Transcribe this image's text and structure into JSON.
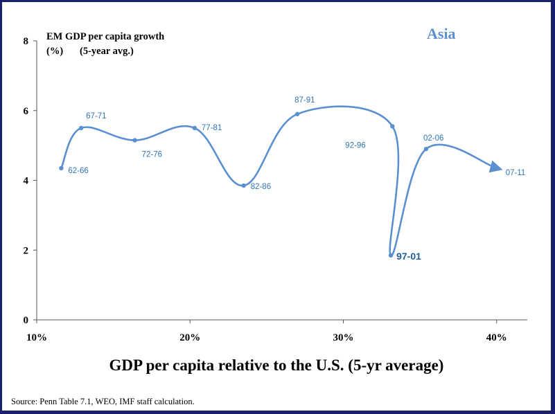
{
  "chart_data": {
    "type": "line",
    "title": "Asia",
    "ylabel_line1": "EM GDP  per capita  growth",
    "ylabel_units": "(%)",
    "ylabel_avg": "(5-year avg.)",
    "xlabel": "GDP per capita relative to the U.S. (5-yr average)",
    "xlim": [
      10,
      42
    ],
    "ylim": [
      0,
      8
    ],
    "x_ticks": [
      10,
      20,
      30,
      40
    ],
    "x_tick_labels": [
      "10%",
      "20%",
      "30%",
      "40%"
    ],
    "y_ticks": [
      0,
      2,
      4,
      6,
      8
    ],
    "y_tick_labels": [
      "0",
      "2",
      "4",
      "6",
      "8"
    ],
    "grid": false,
    "series": [
      {
        "name": "Asia",
        "color": "#5b8fd0",
        "points": [
          {
            "label": "62-66",
            "x": 11.6,
            "y": 4.35
          },
          {
            "label": "67-71",
            "x": 12.9,
            "y": 5.5
          },
          {
            "label": "72-76",
            "x": 16.4,
            "y": 5.15
          },
          {
            "label": "77-81",
            "x": 20.3,
            "y": 5.5
          },
          {
            "label": "82-86",
            "x": 23.5,
            "y": 3.85
          },
          {
            "label": "87-91",
            "x": 27.0,
            "y": 5.9
          },
          {
            "label": "92-96",
            "x": 33.2,
            "y": 5.55
          },
          {
            "label": "97-01",
            "x": 33.1,
            "y": 1.85
          },
          {
            "label": "02-06",
            "x": 35.4,
            "y": 4.9
          },
          {
            "label": "07-11",
            "x": 40.0,
            "y": 4.35
          }
        ]
      }
    ]
  },
  "source": "Source: Penn Table 7.1, WEO, IMF staff calculation."
}
